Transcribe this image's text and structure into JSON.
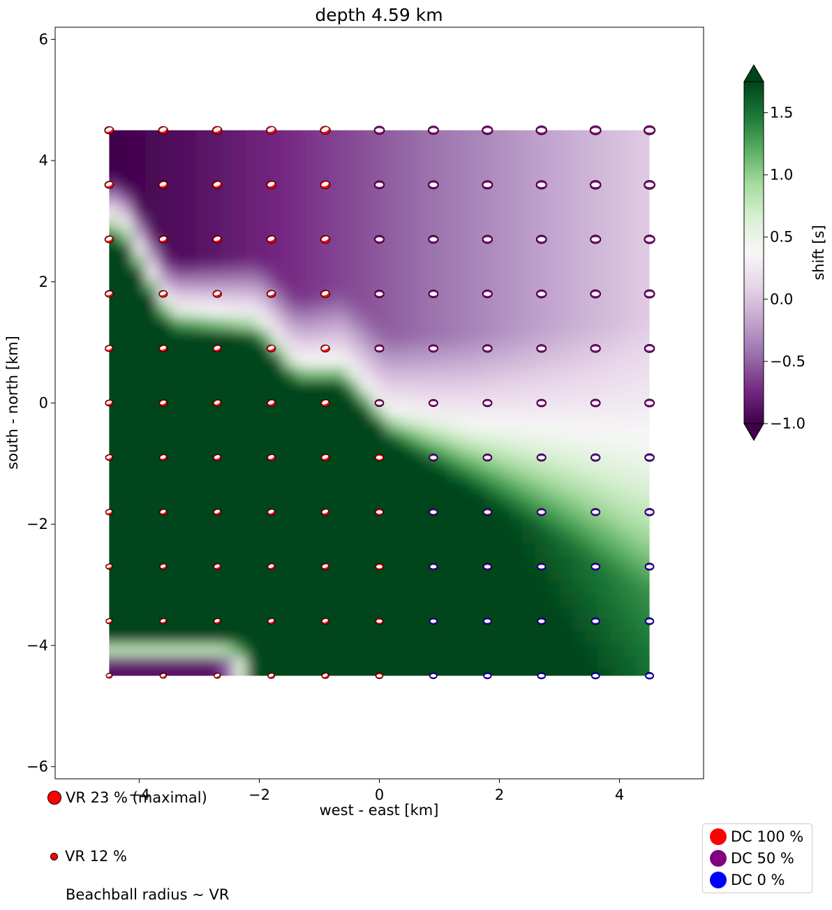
{
  "chart_data": {
    "type": "heatmap",
    "title": "depth  4.59 km",
    "xlabel": "west - east [km]",
    "ylabel": "south - north [km]",
    "xlim": [
      -5.4,
      5.4
    ],
    "ylim": [
      -6.2,
      6.2
    ],
    "xticks": [
      -4,
      -2,
      0,
      2,
      4
    ],
    "yticks": [
      -6,
      -4,
      -2,
      0,
      2,
      4,
      6
    ],
    "xtick_labels": [
      "−4",
      "−2",
      "0",
      "2",
      "4"
    ],
    "ytick_labels": [
      "−6",
      "−4",
      "−2",
      "0",
      "2",
      "4",
      "6"
    ],
    "grid": false,
    "grid_x": [
      -4.5,
      -3.6,
      -2.7,
      -1.8,
      -0.9,
      0.0,
      0.9,
      1.8,
      2.7,
      3.6,
      4.5
    ],
    "grid_y": [
      4.5,
      3.6,
      2.7,
      1.8,
      0.9,
      0.0,
      -0.9,
      -1.8,
      -2.7,
      -3.6,
      -4.5
    ],
    "colorbar": {
      "label": "shift [s]",
      "range": [
        -1.0,
        1.75
      ],
      "ticks": [
        -1.0,
        -0.5,
        0.0,
        0.5,
        1.0,
        1.5
      ],
      "tick_labels": [
        "−1.0",
        "−0.5",
        "0.0",
        "0.5",
        "1.0",
        "1.5"
      ],
      "colormap": "PRGn",
      "colors": [
        "#40004b",
        "#762a83",
        "#9970ab",
        "#c2a5cf",
        "#e7d4e8",
        "#f7f7f7",
        "#d9f0d3",
        "#a6dba0",
        "#5aae61",
        "#1b7837",
        "#00441b"
      ]
    },
    "dc_legend": [
      {
        "label": "DC 100 %",
        "color": "#ff0000"
      },
      {
        "label": "DC 50 %",
        "color": "#800080"
      },
      {
        "label": "DC 0 %",
        "color": "#0000ff"
      }
    ],
    "vr_legend": [
      {
        "label": "VR 23 % (maximal)",
        "vr": 23
      },
      {
        "label": "VR 12 %",
        "vr": 12
      }
    ],
    "radius_note": "Beachball radius ~ VR"
  }
}
